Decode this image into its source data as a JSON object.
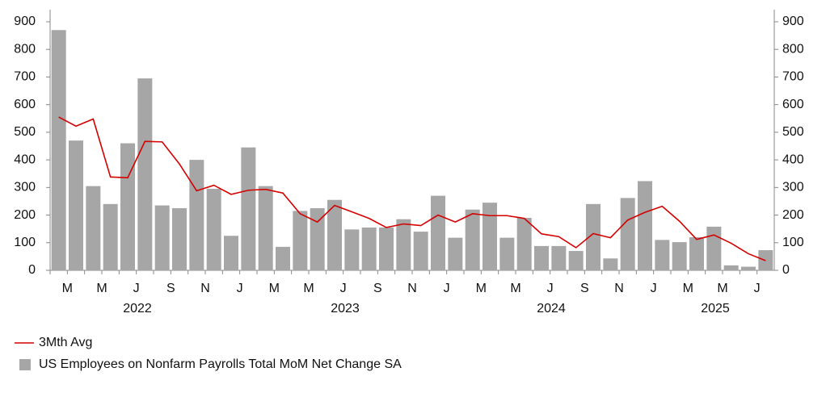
{
  "chart_data": {
    "type": "bar_line",
    "categories": [
      "M",
      null,
      "M",
      null,
      "J",
      null,
      "S",
      null,
      "N",
      null,
      "J",
      null,
      "M",
      null,
      "M",
      null,
      "J",
      null,
      "S",
      null,
      "N",
      null,
      "J",
      null,
      "M",
      null,
      "M",
      null,
      "J",
      null,
      "S",
      null,
      "N",
      null,
      "J",
      null,
      "M",
      null,
      "M",
      null,
      "J",
      null
    ],
    "x_groups": [
      "2022",
      "2023",
      "2024",
      "2025"
    ],
    "series": [
      {
        "name": "3Mth Avg",
        "type": "line",
        "color": "#d40000",
        "values": [
          555,
          522,
          548,
          338,
          335,
          467,
          465,
          385,
          288,
          308,
          275,
          290,
          293,
          280,
          205,
          175,
          235,
          212,
          188,
          155,
          168,
          162,
          200,
          175,
          205,
          198,
          198,
          188,
          132,
          122,
          82,
          133,
          118,
          182,
          210,
          232,
          178,
          112,
          128,
          98,
          60,
          35
        ]
      },
      {
        "name": "US Employees on Nonfarm Payrolls Total MoM Net Change SA",
        "type": "bar",
        "color": "#a6a6a6",
        "values": [
          870,
          470,
          305,
          240,
          460,
          695,
          235,
          225,
          400,
          295,
          125,
          445,
          305,
          85,
          215,
          225,
          255,
          148,
          155,
          155,
          185,
          140,
          270,
          118,
          220,
          245,
          118,
          190,
          88,
          88,
          70,
          240,
          43,
          262,
          323,
          110,
          102,
          120,
          158,
          18,
          13,
          73
        ]
      }
    ],
    "ylim": [
      0,
      900
    ],
    "yticks": [
      0,
      100,
      200,
      300,
      400,
      500,
      600,
      700,
      800,
      900
    ],
    "y2lim": [
      0,
      900
    ],
    "y2ticks": [
      0,
      100,
      200,
      300,
      400,
      500,
      600,
      700,
      800,
      900
    ]
  }
}
